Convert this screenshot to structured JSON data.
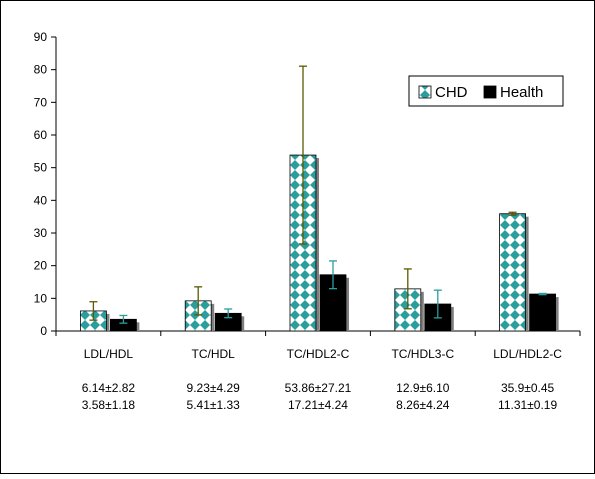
{
  "chart_data": {
    "type": "bar",
    "categories": [
      "LDL/HDL",
      "TC/HDL",
      "TC/HDL2-C",
      "TC/HDL3-C",
      "LDL/HDL2-C"
    ],
    "series": [
      {
        "name": "CHD",
        "values": [
          6.14,
          9.23,
          53.86,
          12.9,
          35.9
        ],
        "errors": [
          2.82,
          4.29,
          27.21,
          6.1,
          0.45
        ]
      },
      {
        "name": "Health",
        "values": [
          3.58,
          5.41,
          17.21,
          8.26,
          11.31
        ],
        "errors": [
          1.18,
          1.33,
          4.24,
          4.24,
          0.19
        ]
      }
    ],
    "annotations": [
      {
        "chd": "6.14±2.82",
        "health": "3.58±1.18"
      },
      {
        "chd": "9.23±4.29",
        "health": "5.41±1.33"
      },
      {
        "chd": "53.86±27.21",
        "health": "17.21±4.24"
      },
      {
        "chd": "12.9±6.10",
        "health": "8.26±4.24"
      },
      {
        "chd": "35.9±0.45",
        "health": "11.31±0.19"
      }
    ],
    "yticks": [
      0,
      10,
      20,
      30,
      40,
      50,
      60,
      70,
      80,
      90
    ],
    "ylim": [
      0,
      90
    ],
    "grid": false,
    "legend_position": "top-right",
    "colors": {
      "chd_pattern": "#2a9d9d",
      "chd_background": "#ffffff",
      "health_fill": "#000000",
      "error_bar_chd": "#5a5a00",
      "error_bar_health": "#2a9d9d",
      "axis": "#000000"
    }
  }
}
